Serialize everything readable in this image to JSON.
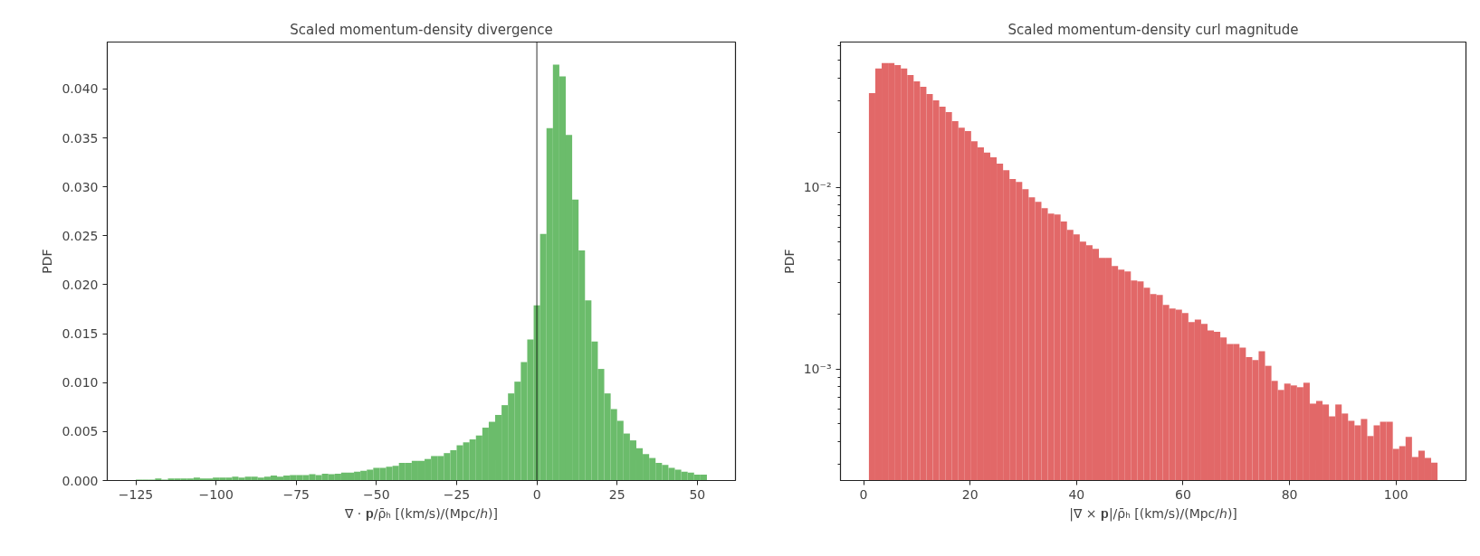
{
  "chart_data": [
    {
      "type": "histogram",
      "title": "Scaled momentum-density divergence",
      "xlabel": "∇ · 𝐩/ρ̄ₕ [(km/s)/(Mpc/ℎ)]",
      "ylabel": "PDF",
      "color": "#6bbc6b",
      "bins": [
        -125,
        -123,
        -121,
        -119,
        -117,
        -115,
        -113,
        -111,
        -109,
        -107,
        -105,
        -103,
        -101,
        -99,
        -97,
        -95,
        -93,
        -91,
        -89,
        -87,
        -85,
        -83,
        -81,
        -79,
        -77,
        -75,
        -73,
        -71,
        -69,
        -67,
        -65,
        -63,
        -61,
        -59,
        -57,
        -55,
        -53,
        -51,
        -49,
        -47,
        -45,
        -43,
        -41,
        -39,
        -37,
        -35,
        -33,
        -31,
        -29,
        -27,
        -25,
        -23,
        -21,
        -19,
        -17,
        -15,
        -13,
        -11,
        -9,
        -7,
        -5,
        -3,
        -1,
        1,
        3,
        5,
        7,
        9,
        11,
        13,
        15,
        17,
        19,
        21,
        23,
        25,
        27,
        29,
        31,
        33,
        35,
        37,
        39,
        41,
        43,
        45,
        47,
        49,
        51,
        53
      ],
      "values": [
        0.0001,
        0.0001,
        0.0001,
        0.0002,
        0.0001,
        0.0002,
        0.0002,
        0.0002,
        0.0002,
        0.0003,
        0.0002,
        0.0002,
        0.0003,
        0.0003,
        0.0003,
        0.0004,
        0.0003,
        0.0004,
        0.0004,
        0.0003,
        0.0004,
        0.0005,
        0.0004,
        0.0005,
        0.00055,
        0.00055,
        0.00055,
        0.00065,
        0.00055,
        0.0007,
        0.00065,
        0.0007,
        0.0008,
        0.0008,
        0.0009,
        0.001,
        0.0011,
        0.0013,
        0.0013,
        0.0014,
        0.0015,
        0.0018,
        0.0018,
        0.002,
        0.002,
        0.0022,
        0.0025,
        0.0025,
        0.0028,
        0.0031,
        0.0036,
        0.0039,
        0.0042,
        0.0046,
        0.0054,
        0.006,
        0.0067,
        0.0077,
        0.0089,
        0.0101,
        0.0121,
        0.0144,
        0.0179,
        0.0252,
        0.036,
        0.0425,
        0.0413,
        0.0353,
        0.0287,
        0.0235,
        0.0184,
        0.0142,
        0.0114,
        0.0089,
        0.0073,
        0.0061,
        0.0048,
        0.0041,
        0.0033,
        0.0027,
        0.0023,
        0.0018,
        0.0016,
        0.0013,
        0.0011,
        0.0009,
        0.0008,
        0.0006,
        0.0006
      ],
      "xlim": [
        -133.9,
        61.9
      ],
      "xticks": [
        {
          "value": -125,
          "label": "−125"
        },
        {
          "value": -100,
          "label": "−100"
        },
        {
          "value": -75,
          "label": "−75"
        },
        {
          "value": -50,
          "label": "−50"
        },
        {
          "value": -25,
          "label": "−25"
        },
        0,
        25,
        50
      ],
      "ylim": [
        0,
        0.0448
      ],
      "yticks": [
        {
          "value": 0,
          "label": "0.000"
        },
        {
          "value": 0.005,
          "label": "0.005"
        },
        {
          "value": 0.01,
          "label": "0.010"
        },
        {
          "value": 0.015,
          "label": "0.015"
        },
        {
          "value": 0.02,
          "label": "0.020"
        },
        {
          "value": 0.025,
          "label": "0.025"
        },
        {
          "value": 0.03,
          "label": "0.030"
        },
        {
          "value": 0.035,
          "label": "0.035"
        },
        {
          "value": 0.04,
          "label": "0.040"
        }
      ],
      "ref_lines": [
        {
          "axis": "x",
          "value": 0,
          "color": "#000000"
        }
      ]
    },
    {
      "type": "histogram",
      "title": "Scaled momentum-density curl magnitude",
      "xlabel": "|∇ × 𝐩|/ρ̄ₕ [(km/s)/(Mpc/ℎ)]",
      "ylabel": "PDF",
      "color": "#e26868",
      "log": true,
      "bins": [
        1.0,
        2.2,
        3.4,
        4.6,
        5.8,
        7.0,
        8.2,
        9.4,
        10.6,
        11.8,
        13.0,
        14.2,
        15.4,
        16.6,
        17.8,
        19.0,
        20.2,
        21.4,
        22.6,
        23.8,
        25.0,
        26.2,
        27.4,
        28.6,
        29.8,
        31.0,
        32.2,
        33.4,
        34.6,
        35.8,
        37.0,
        38.2,
        39.4,
        40.6,
        41.8,
        43.0,
        44.2,
        45.4,
        46.6,
        47.8,
        49.0,
        50.2,
        51.4,
        52.6,
        53.8,
        55.0,
        56.2,
        57.4,
        58.6,
        59.8,
        61.0,
        62.2,
        63.4,
        64.6,
        65.8,
        67.0,
        68.2,
        69.4,
        70.6,
        71.8,
        73.0,
        74.2,
        75.4,
        76.6,
        77.8,
        79.0,
        80.2,
        81.4,
        82.6,
        83.8,
        85.0,
        86.2,
        87.4,
        88.6,
        89.8,
        91.0,
        92.2,
        93.4,
        94.6,
        95.8,
        97.0,
        98.2,
        99.4,
        100.6,
        101.8,
        103.0,
        104.2,
        105.4,
        106.6,
        107.8
      ],
      "values": [
        0.033,
        0.045,
        0.0482,
        0.0482,
        0.0471,
        0.045,
        0.0415,
        0.0383,
        0.0357,
        0.0326,
        0.0301,
        0.0278,
        0.0259,
        0.0231,
        0.0213,
        0.0204,
        0.0179,
        0.0166,
        0.0155,
        0.0146,
        0.0135,
        0.0124,
        0.0111,
        0.0107,
        0.00977,
        0.00881,
        0.00832,
        0.00767,
        0.00716,
        0.00708,
        0.00647,
        0.00583,
        0.00551,
        0.00502,
        0.0048,
        0.00458,
        0.00408,
        0.00408,
        0.00368,
        0.00352,
        0.00344,
        0.00307,
        0.00303,
        0.0028,
        0.00258,
        0.00255,
        0.00225,
        0.00215,
        0.00212,
        0.00203,
        0.00181,
        0.00187,
        0.00177,
        0.00163,
        0.0016,
        0.00149,
        0.00137,
        0.00137,
        0.00131,
        0.00116,
        0.00112,
        0.00125,
        0.00104,
        0.000859,
        0.000766,
        0.00083,
        0.000811,
        0.000793,
        0.000839,
        0.000644,
        0.000667,
        0.000637,
        0.000548,
        0.000637,
        0.000568,
        0.000518,
        0.000489,
        0.00053,
        0.000427,
        0.000489,
        0.000512,
        0.000512,
        0.000363,
        0.000376,
        0.000422,
        0.000327,
        0.000355,
        0.000324,
        0.000305
      ],
      "xlim": [
        -4.34,
        113.14
      ],
      "xticks": [
        0,
        20,
        40,
        60,
        80,
        100
      ],
      "ylim": [
        0.000243,
        0.063
      ],
      "yticks": [
        {
          "value": 0.0003,
          "label": null
        },
        {
          "value": 0.0004,
          "label": null
        },
        {
          "value": 0.0005,
          "label": null
        },
        {
          "value": 0.0006,
          "label": null
        },
        {
          "value": 0.0007,
          "label": null
        },
        {
          "value": 0.0008,
          "label": null
        },
        {
          "value": 0.0009,
          "label": null
        },
        {
          "value": 0.001,
          "label": "10⁻³"
        },
        {
          "value": 0.002,
          "label": null
        },
        {
          "value": 0.003,
          "label": null
        },
        {
          "value": 0.004,
          "label": null
        },
        {
          "value": 0.005,
          "label": null
        },
        {
          "value": 0.006,
          "label": null
        },
        {
          "value": 0.007,
          "label": null
        },
        {
          "value": 0.008,
          "label": null
        },
        {
          "value": 0.009,
          "label": null
        },
        {
          "value": 0.01,
          "label": "10⁻²"
        },
        {
          "value": 0.02,
          "label": null
        },
        {
          "value": 0.03,
          "label": null
        },
        {
          "value": 0.04,
          "label": null
        },
        {
          "value": 0.05,
          "label": null
        },
        {
          "value": 0.06,
          "label": null
        }
      ]
    }
  ]
}
